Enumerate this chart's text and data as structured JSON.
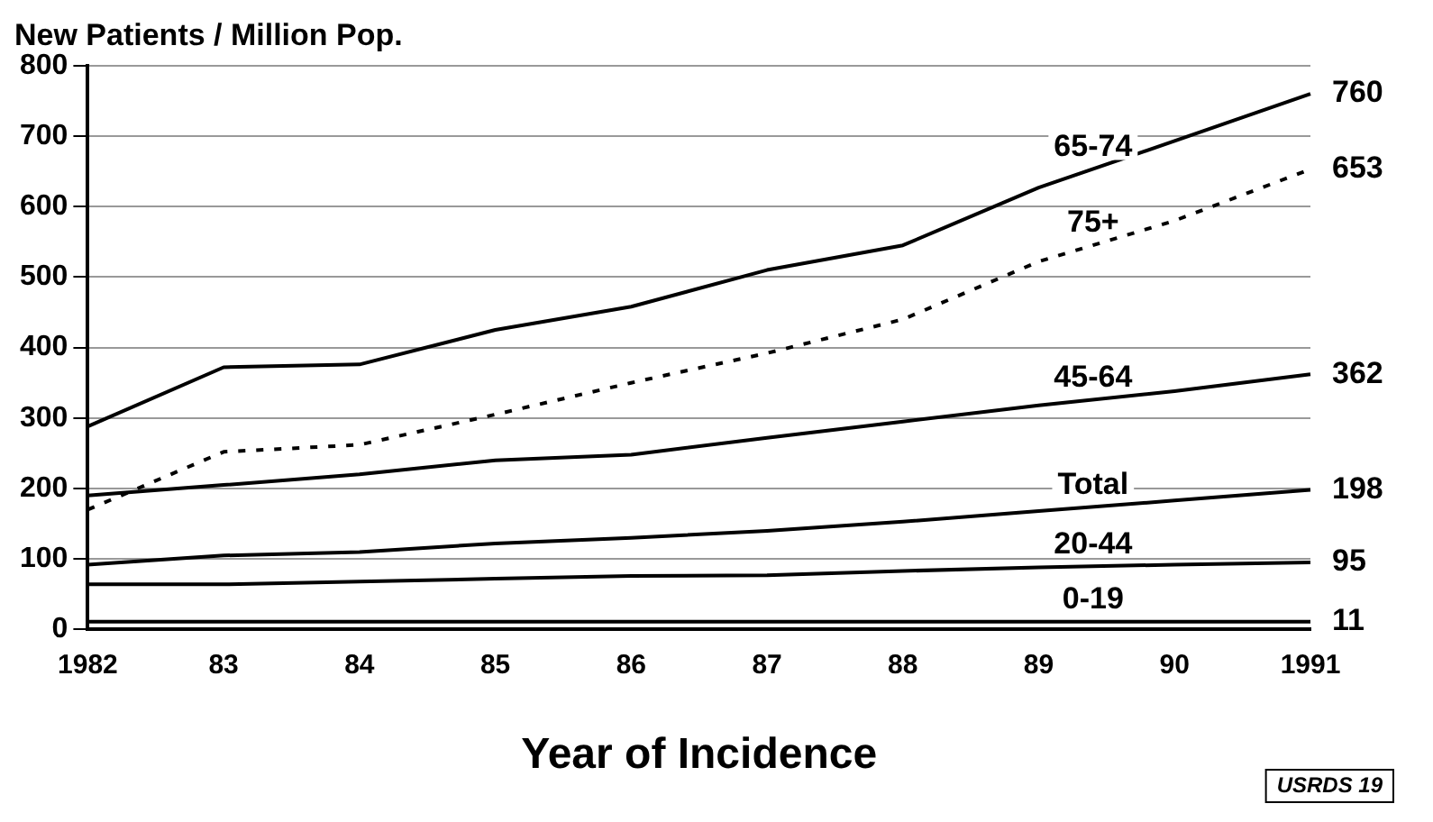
{
  "chart_data": {
    "type": "line",
    "title": "New Patients / Million Pop.",
    "xlabel": "Year of Incidence",
    "categories": [
      "1982",
      "83",
      "84",
      "85",
      "86",
      "87",
      "88",
      "89",
      "90",
      "1991"
    ],
    "series": [
      {
        "name": "65-74",
        "color": "#000000",
        "values": [
          288,
          372,
          376,
          425,
          458,
          510,
          545,
          627,
          693,
          760
        ],
        "value_labels": [
          null,
          null,
          null,
          null,
          null,
          null,
          null,
          null,
          null,
          "760"
        ]
      },
      {
        "name": "75+",
        "color": "#000000",
        "line_style": "dashed",
        "values": [
          170,
          252,
          262,
          305,
          350,
          392,
          440,
          522,
          580,
          653
        ],
        "value_labels": [
          null,
          null,
          null,
          null,
          null,
          null,
          null,
          null,
          null,
          "653"
        ]
      },
      {
        "name": "45-64",
        "color": "#000000",
        "values": [
          190,
          205,
          220,
          240,
          248,
          272,
          295,
          318,
          338,
          362
        ],
        "value_labels": [
          null,
          null,
          null,
          null,
          null,
          null,
          null,
          null,
          null,
          "362"
        ]
      },
      {
        "name": "Total",
        "color": "#000000",
        "values": [
          92,
          105,
          110,
          122,
          130,
          140,
          153,
          168,
          183,
          198
        ],
        "value_labels": [
          null,
          null,
          null,
          null,
          null,
          null,
          null,
          null,
          null,
          "198"
        ]
      },
      {
        "name": "20-44",
        "color": "#000000",
        "values": [
          64,
          64,
          68,
          72,
          76,
          77,
          83,
          88,
          92,
          95
        ],
        "value_labels": [
          null,
          null,
          null,
          null,
          null,
          null,
          null,
          null,
          null,
          "95"
        ]
      },
      {
        "name": "0-19",
        "color": "#000000",
        "values": [
          11,
          11,
          11,
          11,
          11,
          11,
          11,
          11,
          11,
          11
        ],
        "value_labels": [
          null,
          null,
          null,
          null,
          null,
          null,
          null,
          null,
          null,
          "11"
        ]
      }
    ],
    "ylim": [
      0,
      800
    ],
    "yticks": [
      0,
      100,
      200,
      300,
      400,
      500,
      600,
      700,
      800
    ],
    "grid": "y",
    "legend": false,
    "marker": "none",
    "line_style": "solid",
    "annotations": [
      "USRDS 19"
    ]
  }
}
